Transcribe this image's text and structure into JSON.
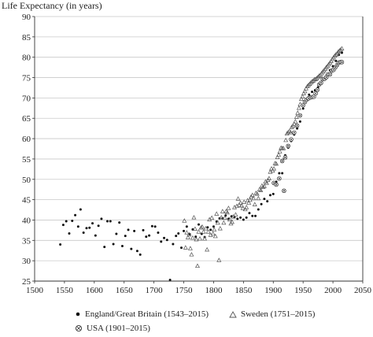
{
  "chart_data": {
    "type": "scatter",
    "title": "",
    "ylabel": "Life Expectancy (in years)",
    "xlabel": "",
    "xlim": [
      1500,
      2050
    ],
    "ylim": [
      25,
      90
    ],
    "xticks": [
      1500,
      1550,
      1600,
      1650,
      1700,
      1750,
      1800,
      1850,
      1900,
      1950,
      2000,
      2050
    ],
    "yticks": [
      25,
      30,
      35,
      40,
      45,
      50,
      55,
      60,
      65,
      70,
      75,
      80,
      85,
      90
    ],
    "grid": "horizontal",
    "legend_position": "bottom",
    "series": [
      {
        "name": "England/Great Britain (1543–2015)",
        "marker": "dot",
        "color": "#111111",
        "points": [
          [
            1543,
            34
          ],
          [
            1548,
            38.8
          ],
          [
            1553,
            39.7
          ],
          [
            1558,
            36.7
          ],
          [
            1563,
            39.8
          ],
          [
            1568,
            41.2
          ],
          [
            1573,
            38.4
          ],
          [
            1577,
            42.6
          ],
          [
            1582,
            36.9
          ],
          [
            1587,
            38
          ],
          [
            1592,
            38.1
          ],
          [
            1597,
            39.2
          ],
          [
            1602,
            36.2
          ],
          [
            1607,
            38.6
          ],
          [
            1612,
            40.3
          ],
          [
            1617,
            33.4
          ],
          [
            1622,
            39.7
          ],
          [
            1627,
            39.7
          ],
          [
            1632,
            34.1
          ],
          [
            1637,
            36.6
          ],
          [
            1642,
            39.4
          ],
          [
            1647,
            33.6
          ],
          [
            1652,
            36.1
          ],
          [
            1657,
            37.6
          ],
          [
            1662,
            32.9
          ],
          [
            1667,
            37.3
          ],
          [
            1672,
            32.4
          ],
          [
            1677,
            31.5
          ],
          [
            1682,
            37.5
          ],
          [
            1687,
            35.9
          ],
          [
            1692,
            36.2
          ],
          [
            1697,
            38.5
          ],
          [
            1702,
            38.4
          ],
          [
            1707,
            36.9
          ],
          [
            1712,
            34.7
          ],
          [
            1717,
            35.6
          ],
          [
            1722,
            35.1
          ],
          [
            1727,
            25.3
          ],
          [
            1732,
            34.1
          ],
          [
            1737,
            36.1
          ],
          [
            1741,
            36.7
          ],
          [
            1746,
            33.2
          ],
          [
            1750,
            37.3
          ],
          [
            1755,
            38.4
          ],
          [
            1760,
            36.5
          ],
          [
            1765,
            37.7
          ],
          [
            1770,
            35.9
          ],
          [
            1775,
            38.9
          ],
          [
            1780,
            36.6
          ],
          [
            1785,
            35.8
          ],
          [
            1790,
            38.2
          ],
          [
            1795,
            37.6
          ],
          [
            1800,
            38.4
          ],
          [
            1805,
            39.6
          ],
          [
            1810,
            40.4
          ],
          [
            1815,
            40.4
          ],
          [
            1820,
            41.1
          ],
          [
            1825,
            40.3
          ],
          [
            1830,
            40.9
          ],
          [
            1835,
            40.7
          ],
          [
            1840,
            40.3
          ],
          [
            1845,
            40.6
          ],
          [
            1850,
            40.1
          ],
          [
            1855,
            40.6
          ],
          [
            1860,
            41.7
          ],
          [
            1865,
            41
          ],
          [
            1870,
            41
          ],
          [
            1875,
            42.6
          ],
          [
            1880,
            43.9
          ],
          [
            1885,
            45.2
          ],
          [
            1890,
            44.6
          ],
          [
            1895,
            46.1
          ],
          [
            1900,
            46.4
          ],
          [
            1905,
            49.4
          ],
          [
            1910,
            51.5
          ],
          [
            1915,
            51.5
          ],
          [
            1920,
            55.9
          ],
          [
            1925,
            57.8
          ],
          [
            1930,
            59.4
          ],
          [
            1935,
            61
          ],
          [
            1940,
            62.5
          ],
          [
            1945,
            64.2
          ],
          [
            1950,
            67.4
          ],
          [
            1955,
            69.2
          ],
          [
            1960,
            70.8
          ],
          [
            1965,
            71.5
          ],
          [
            1970,
            71.9
          ],
          [
            1975,
            72.6
          ],
          [
            1980,
            73.6
          ],
          [
            1985,
            74.7
          ],
          [
            1990,
            75.7
          ],
          [
            1995,
            76.8
          ],
          [
            2000,
            77.8
          ],
          [
            2005,
            79.1
          ],
          [
            2010,
            80.6
          ],
          [
            2015,
            81.1
          ]
        ]
      },
      {
        "name": "Sweden (1751–2015)",
        "marker": "triangle",
        "color": "#555555",
        "points": [
          [
            1751,
            39.8
          ],
          [
            1753,
            33.2
          ],
          [
            1755,
            36.9
          ],
          [
            1757,
            35.7
          ],
          [
            1759,
            36.4
          ],
          [
            1761,
            33
          ],
          [
            1763,
            31.5
          ],
          [
            1765,
            35.6
          ],
          [
            1767,
            40.6
          ],
          [
            1769,
            37.8
          ],
          [
            1771,
            35.2
          ],
          [
            1773,
            28.7
          ],
          [
            1775,
            37.1
          ],
          [
            1777,
            35.4
          ],
          [
            1779,
            38.1
          ],
          [
            1781,
            38.3
          ],
          [
            1783,
            37.1
          ],
          [
            1785,
            35.4
          ],
          [
            1787,
            37.9
          ],
          [
            1789,
            32.7
          ],
          [
            1791,
            37.1
          ],
          [
            1793,
            40.1
          ],
          [
            1795,
            36.3
          ],
          [
            1797,
            40.5
          ],
          [
            1799,
            36.6
          ],
          [
            1801,
            37.6
          ],
          [
            1803,
            36
          ],
          [
            1805,
            41.5
          ],
          [
            1807,
            39.3
          ],
          [
            1809,
            30.1
          ],
          [
            1811,
            37.9
          ],
          [
            1813,
            40.6
          ],
          [
            1815,
            42.1
          ],
          [
            1817,
            39.3
          ],
          [
            1819,
            40.5
          ],
          [
            1821,
            42.1
          ],
          [
            1823,
            41.8
          ],
          [
            1825,
            42.9
          ],
          [
            1827,
            40.1
          ],
          [
            1829,
            39.1
          ],
          [
            1831,
            39.5
          ],
          [
            1833,
            40.8
          ],
          [
            1835,
            43.1
          ],
          [
            1837,
            41.3
          ],
          [
            1839,
            43.4
          ],
          [
            1841,
            45.2
          ],
          [
            1843,
            43.7
          ],
          [
            1845,
            44.2
          ],
          [
            1847,
            43.5
          ],
          [
            1849,
            42.9
          ],
          [
            1851,
            44.4
          ],
          [
            1853,
            42.6
          ],
          [
            1855,
            43.1
          ],
          [
            1857,
            44.8
          ],
          [
            1859,
            44.2
          ],
          [
            1861,
            44.9
          ],
          [
            1863,
            45.7
          ],
          [
            1865,
            46.1
          ],
          [
            1867,
            45.3
          ],
          [
            1869,
            43.8
          ],
          [
            1871,
            46.6
          ],
          [
            1873,
            46.4
          ],
          [
            1875,
            45.3
          ],
          [
            1877,
            47.5
          ],
          [
            1879,
            47.3
          ],
          [
            1881,
            48.4
          ],
          [
            1883,
            48.1
          ],
          [
            1885,
            48.3
          ],
          [
            1887,
            49.4
          ],
          [
            1889,
            49.1
          ],
          [
            1891,
            49.8
          ],
          [
            1893,
            50.2
          ],
          [
            1895,
            51.8
          ],
          [
            1897,
            52.6
          ],
          [
            1899,
            52.1
          ],
          [
            1901,
            52.6
          ],
          [
            1903,
            53.9
          ],
          [
            1905,
            53.8
          ],
          [
            1907,
            55.4
          ],
          [
            1909,
            56
          ],
          [
            1911,
            56.8
          ],
          [
            1913,
            57.7
          ],
          [
            1915,
            57.6
          ],
          [
            1917,
            57.6
          ],
          [
            1919,
            55.3
          ],
          [
            1921,
            59.6
          ],
          [
            1923,
            61.2
          ],
          [
            1925,
            61.5
          ],
          [
            1927,
            61.8
          ],
          [
            1929,
            61.5
          ],
          [
            1931,
            62.8
          ],
          [
            1933,
            63.1
          ],
          [
            1935,
            63.6
          ],
          [
            1937,
            64.2
          ],
          [
            1939,
            65.3
          ],
          [
            1941,
            66.3
          ],
          [
            1943,
            67.5
          ],
          [
            1945,
            68.4
          ],
          [
            1947,
            69.7
          ],
          [
            1949,
            70.3
          ],
          [
            1951,
            71.1
          ],
          [
            1953,
            71.6
          ],
          [
            1955,
            72.3
          ],
          [
            1957,
            72.8
          ],
          [
            1959,
            73.1
          ],
          [
            1961,
            73.4
          ],
          [
            1963,
            73.7
          ],
          [
            1965,
            74
          ],
          [
            1967,
            74.2
          ],
          [
            1969,
            74.5
          ],
          [
            1971,
            74.6
          ],
          [
            1973,
            74.8
          ],
          [
            1975,
            75.1
          ],
          [
            1977,
            75.4
          ],
          [
            1979,
            75.6
          ],
          [
            1981,
            76
          ],
          [
            1983,
            76.4
          ],
          [
            1985,
            76.7
          ],
          [
            1987,
            77.1
          ],
          [
            1989,
            77.5
          ],
          [
            1991,
            77.8
          ],
          [
            1993,
            78.2
          ],
          [
            1995,
            78.6
          ],
          [
            1997,
            79
          ],
          [
            1999,
            79.5
          ],
          [
            2001,
            79.9
          ],
          [
            2003,
            80.3
          ],
          [
            2005,
            80.6
          ],
          [
            2007,
            80.9
          ],
          [
            2009,
            81.3
          ],
          [
            2011,
            81.6
          ],
          [
            2013,
            81.8
          ],
          [
            2015,
            82.1
          ]
        ]
      },
      {
        "name": "USA (1901–2015)",
        "marker": "circled-x",
        "color": "#333333",
        "points": [
          [
            1901,
            49.1
          ],
          [
            1905,
            48.7
          ],
          [
            1910,
            50.2
          ],
          [
            1915,
            54.5
          ],
          [
            1918,
            47.2
          ],
          [
            1920,
            55.4
          ],
          [
            1925,
            58.2
          ],
          [
            1930,
            59.8
          ],
          [
            1935,
            61.5
          ],
          [
            1940,
            63.2
          ],
          [
            1945,
            65.7
          ],
          [
            1950,
            68.2
          ],
          [
            1953,
            69
          ],
          [
            1956,
            69.6
          ],
          [
            1959,
            69.9
          ],
          [
            1962,
            70.1
          ],
          [
            1965,
            70.2
          ],
          [
            1968,
            70.3
          ],
          [
            1971,
            71.1
          ],
          [
            1974,
            72
          ],
          [
            1977,
            73.3
          ],
          [
            1980,
            73.7
          ],
          [
            1983,
            74.6
          ],
          [
            1986,
            74.7
          ],
          [
            1989,
            75.1
          ],
          [
            1992,
            75.8
          ],
          [
            1995,
            75.8
          ],
          [
            1998,
            76.7
          ],
          [
            2001,
            76.9
          ],
          [
            2004,
            77.5
          ],
          [
            2007,
            78.1
          ],
          [
            2010,
            78.7
          ],
          [
            2013,
            78.8
          ],
          [
            2015,
            78.8
          ]
        ]
      }
    ]
  }
}
